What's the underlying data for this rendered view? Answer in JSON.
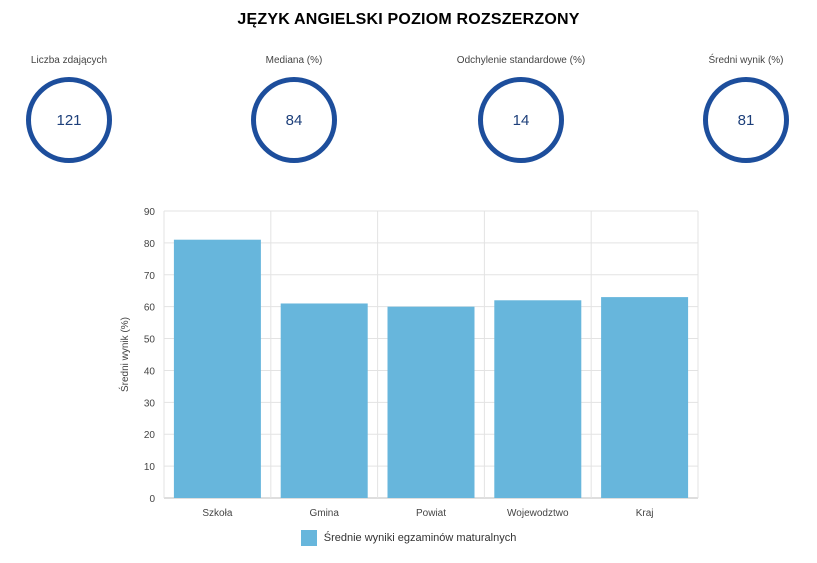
{
  "title": "JĘZYK ANGIELSKI POZIOM ROZSZERZONY",
  "stats": [
    {
      "label": "Liczba zdających",
      "value": "121"
    },
    {
      "label": "Mediana (%)",
      "value": "84"
    },
    {
      "label": "Odchylenie standardowe (%)",
      "value": "14"
    },
    {
      "label": "Średni wynik (%)",
      "value": "81"
    }
  ],
  "colors": {
    "ring": "#1d4e9c",
    "bar": "#67b6dc",
    "grid": "#e3e3e3"
  },
  "chart_data": {
    "type": "bar",
    "categories": [
      "Szkoła",
      "Gmina",
      "Powiat",
      "Wojewodztwo",
      "Kraj"
    ],
    "series": [
      {
        "name": "Średnie wyniki egzaminów maturalnych",
        "values": [
          81,
          61,
          60,
          62,
          63
        ]
      }
    ],
    "ylabel": "Średni wynik (%)",
    "xlabel": "",
    "ylim": [
      0,
      90
    ],
    "yticks": [
      0,
      10,
      20,
      30,
      40,
      50,
      60,
      70,
      80,
      90
    ],
    "grid": true,
    "legend": "bottom"
  }
}
